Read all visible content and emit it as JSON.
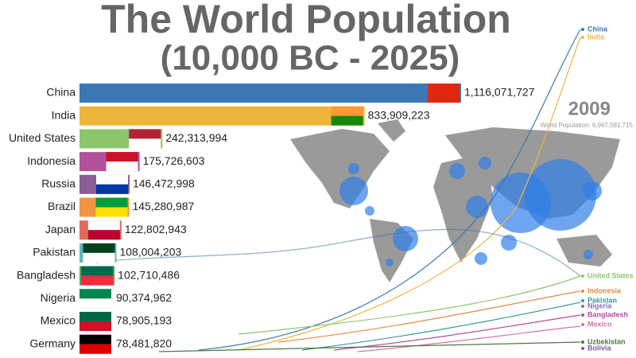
{
  "chart_data": {
    "type": "bar",
    "title": "The World Population",
    "subtitle": "(10,000 BC - 2025)",
    "year": "2009",
    "total_label": "World Population: 6,967,581,715",
    "categories": [
      "China",
      "India",
      "United States",
      "Indonesia",
      "Russia",
      "Brazil",
      "Japan",
      "Pakistan",
      "Bangladesh",
      "Nigeria",
      "Mexico",
      "Germany"
    ],
    "values": [
      1116071727,
      833909223,
      242313994,
      175726603,
      146472998,
      145280987,
      122802943,
      108004203,
      102710486,
      90374962,
      78905193,
      78481820
    ],
    "value_labels": [
      "1,116,071,727",
      "833,909,223",
      "242,313,994",
      "175,726,603",
      "146,472,998",
      "145,280,987",
      "122,802,943",
      "108,004,203",
      "102,710,486",
      "90,374,962",
      "78,905,193",
      "78,481,820"
    ],
    "colors": [
      "#3b78b3",
      "#efb43a",
      "#8cc66b",
      "#b3509c",
      "#8a5e99",
      "#ef963c",
      "#e06b5c",
      "#5cbab8",
      "#5ba35a",
      "#8a6cb2",
      "#d473b3",
      "#e0c24f"
    ],
    "line_labels": [
      {
        "name": "China",
        "color": "#3b78b3"
      },
      {
        "name": "India",
        "color": "#efb43a"
      },
      {
        "name": "United States",
        "color": "#8cc66b"
      },
      {
        "name": "Indonesia",
        "color": "#e08a3c"
      },
      {
        "name": "Pakistan",
        "color": "#3a9a9a"
      },
      {
        "name": "Nigeria",
        "color": "#8a6cb2"
      },
      {
        "name": "Bangladesh",
        "color": "#b3509c"
      },
      {
        "name": "Mexico",
        "color": "#d473b3"
      },
      {
        "name": "Uzbekistan",
        "color": "#4a7a3a"
      },
      {
        "name": "Bolivia",
        "color": "#7a5aa0"
      }
    ]
  }
}
